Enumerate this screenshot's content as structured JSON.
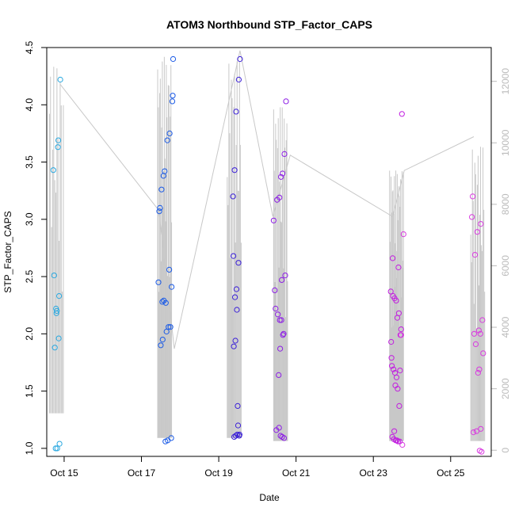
{
  "chart_data": {
    "type": "scatter",
    "title": "ATOM3 Northbound STP_Factor_CAPS",
    "xlabel": "Date",
    "ylabel": "STP_Factor_CAPS",
    "ylim": [
      0.93,
      4.5
    ],
    "y2lim": [
      -200,
      13100
    ],
    "x_ticks": [
      {
        "label": "Oct 15",
        "day": 15
      },
      {
        "label": "Oct 17",
        "day": 17
      },
      {
        "label": "Oct 19",
        "day": 19
      },
      {
        "label": "Oct 21",
        "day": 21
      },
      {
        "label": "Oct 23",
        "day": 23
      },
      {
        "label": "Oct 25",
        "day": 25
      }
    ],
    "y_ticks": [
      {
        "label": "1.0",
        "v": 1.0
      },
      {
        "label": "1.5",
        "v": 1.5
      },
      {
        "label": "2.0",
        "v": 2.0
      },
      {
        "label": "2.5",
        "v": 2.5
      },
      {
        "label": "3.0",
        "v": 3.0
      },
      {
        "label": "3.5",
        "v": 3.5
      },
      {
        "label": "4.0",
        "v": 4.0
      },
      {
        "label": "4.5",
        "v": 4.5
      }
    ],
    "y2_ticks": [
      {
        "label": "0",
        "v": 0
      },
      {
        "label": "2000",
        "v": 2000
      },
      {
        "label": "4000",
        "v": 4000
      },
      {
        "label": "6000",
        "v": 6000
      },
      {
        "label": "8000",
        "v": 8000
      },
      {
        "label": "10000",
        "v": 10000
      },
      {
        "label": "12000",
        "v": 12000
      }
    ],
    "colors": {
      "line": "#c8c8c8",
      "y2_axis": "#bbbbbb",
      "group_colors": [
        "#29a8e0",
        "#1a5ae6",
        "#3a1fd8",
        "#8d1ee6",
        "#c21ee0",
        "#d93ae0"
      ]
    },
    "line_bursts": [
      {
        "x": 14.8,
        "lo": 1200,
        "hi": 12500,
        "n": 14
      },
      {
        "x": 17.6,
        "lo": 400,
        "hi": 12800,
        "n": 22
      },
      {
        "x": 19.4,
        "lo": 400,
        "hi": 12700,
        "n": 18
      },
      {
        "x": 20.6,
        "lo": 300,
        "hi": 11200,
        "n": 22
      },
      {
        "x": 23.6,
        "lo": 300,
        "hi": 9100,
        "n": 30
      },
      {
        "x": 25.7,
        "lo": 300,
        "hi": 9900,
        "n": 18
      }
    ],
    "trend_line": [
      {
        "x": 14.9,
        "y2": 11900
      },
      {
        "x": 17.45,
        "y2": 7800
      },
      {
        "x": 17.85,
        "y2": 3300
      },
      {
        "x": 19.55,
        "y2": 13000
      },
      {
        "x": 20.4,
        "y2": 7600
      },
      {
        "x": 20.85,
        "y2": 9600
      },
      {
        "x": 23.5,
        "y2": 7600
      },
      {
        "x": 23.8,
        "y2": 9100
      },
      {
        "x": 25.6,
        "y2": 10200
      }
    ],
    "series": [
      {
        "group": 0,
        "x": [
          14.72,
          14.74,
          14.76,
          14.78,
          14.79,
          14.8,
          14.81,
          14.82,
          14.84,
          14.85,
          14.86,
          14.87,
          14.88,
          14.9
        ],
        "y": [
          3.43,
          2.51,
          1.88,
          1.0,
          2.22,
          2.18,
          2.2,
          1.0,
          3.63,
          3.69,
          1.96,
          2.33,
          1.04,
          4.22
        ]
      },
      {
        "group": 1,
        "x": [
          17.44,
          17.46,
          17.48,
          17.5,
          17.52,
          17.54,
          17.55,
          17.57,
          17.58,
          17.6,
          17.62,
          17.63,
          17.65,
          17.67,
          17.68,
          17.7,
          17.72,
          17.73,
          17.75,
          17.77,
          17.78,
          17.8,
          17.81,
          17.82
        ],
        "y": [
          2.45,
          3.07,
          3.1,
          1.9,
          3.26,
          2.28,
          1.95,
          3.38,
          2.29,
          3.42,
          1.06,
          2.27,
          2.02,
          3.69,
          1.07,
          2.06,
          2.56,
          3.75,
          2.06,
          1.09,
          2.41,
          4.03,
          4.08,
          4.4
        ]
      },
      {
        "group": 2,
        "x": [
          19.37,
          19.38,
          19.39,
          19.4,
          19.41,
          19.42,
          19.43,
          19.44,
          19.45,
          19.46,
          19.47,
          19.48,
          19.49,
          19.5,
          19.51,
          19.52,
          19.53,
          19.54,
          19.55
        ],
        "y": [
          3.2,
          2.68,
          1.89,
          1.1,
          3.43,
          2.32,
          1.94,
          1.11,
          3.94,
          2.39,
          2.21,
          1.12,
          1.37,
          1.2,
          2.62,
          4.22,
          1.11,
          1.12,
          4.4
        ]
      },
      {
        "group": 3,
        "x": [
          20.42,
          20.45,
          20.47,
          20.49,
          20.51,
          20.53,
          20.55,
          20.56,
          20.57,
          20.58,
          20.59,
          20.6,
          20.61,
          20.62,
          20.63,
          20.64,
          20.65,
          20.66,
          20.68,
          20.69,
          20.7,
          20.72,
          20.74
        ],
        "y": [
          2.99,
          2.38,
          2.22,
          1.16,
          3.17,
          2.17,
          1.64,
          1.18,
          3.19,
          2.12,
          1.87,
          1.11,
          3.37,
          2.12,
          2.47,
          1.1,
          3.4,
          1.99,
          2.0,
          1.09,
          3.57,
          2.51,
          4.03
        ]
      },
      {
        "group": 4,
        "x": [
          23.45,
          23.46,
          23.47,
          23.48,
          23.49,
          23.5,
          23.51,
          23.52,
          23.53,
          23.54,
          23.55,
          23.56,
          23.57,
          23.58,
          23.59,
          23.6,
          23.61,
          23.62,
          23.63,
          23.64,
          23.65,
          23.66,
          23.67,
          23.68,
          23.69,
          23.7,
          23.72,
          23.74
        ],
        "y": [
          2.37,
          1.93,
          1.79,
          1.72,
          1.1,
          2.66,
          2.33,
          1.69,
          1.08,
          1.15,
          2.31,
          1.66,
          1.55,
          1.07,
          2.29,
          1.62,
          1.07,
          2.14,
          1.52,
          1.06,
          2.58,
          2.18,
          1.37,
          1.06,
          1.68,
          1.99,
          2.04,
          3.92
        ]
      },
      {
        "group": 5,
        "x": [
          23.72,
          23.75,
          23.78
        ],
        "y": [
          1.99,
          1.03,
          2.87
        ]
      },
      {
        "group": 5,
        "x": [
          25.55,
          25.57,
          25.59,
          25.61,
          25.63,
          25.65,
          25.67,
          25.69,
          25.71,
          25.73,
          25.75,
          25.77,
          25.78,
          25.8
        ],
        "y": [
          3.02,
          3.2,
          1.14,
          2.0,
          2.69,
          1.91,
          1.15,
          2.89,
          1.66,
          2.03,
          0.98,
          2.0,
          2.96,
          0.97
        ]
      },
      {
        "group": 5,
        "x": [
          25.74,
          25.78,
          25.82,
          25.84
        ],
        "y": [
          1.69,
          1.17,
          2.12,
          1.83
        ]
      }
    ]
  }
}
